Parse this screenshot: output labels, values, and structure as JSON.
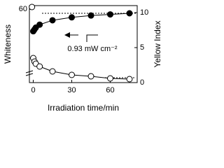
{
  "chart_data": {
    "type": "scatter",
    "x_label": "Irradiation time/min",
    "y_label": "Whiteness",
    "y2_label": "Yellow Index",
    "annotation": "0.93 mW cm⁻²",
    "xlim": [
      -3,
      81
    ],
    "xticks": [
      0,
      30,
      60
    ],
    "ylim": [
      40,
      61
    ],
    "yticks": [
      60
    ],
    "y2lim": [
      0,
      11
    ],
    "y2ticks": [
      0,
      5,
      10
    ],
    "series": [
      {
        "name": "Whiteness",
        "marker": "filled",
        "color": "#000000",
        "axis": "y",
        "x": [
          0,
          1,
          2,
          5,
          15,
          30,
          45,
          60,
          75
        ],
        "values": [
          54,
          54.5,
          55,
          55.8,
          57,
          57.8,
          58.3,
          58.6,
          58.9
        ]
      },
      {
        "name": "Yellow Index",
        "marker": "open",
        "color": "#000000",
        "axis": "y2",
        "x": [
          -1,
          0,
          1,
          2,
          5,
          15,
          30,
          45,
          60,
          75
        ],
        "values": [
          10.8,
          3.5,
          3.0,
          2.7,
          2.3,
          1.6,
          1.1,
          0.9,
          0.6,
          0.5
        ]
      }
    ]
  }
}
